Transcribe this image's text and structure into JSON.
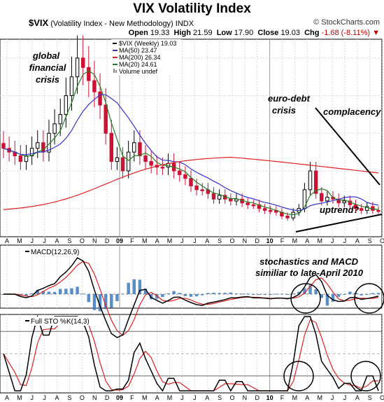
{
  "header": {
    "title": "VIX Volatility Index",
    "symbol": "$VIX",
    "description": "(Volatility Index - New Methodology)",
    "exchange": "INDX",
    "brand": "© StockCharts.com",
    "open_label": "Open",
    "open": "19.33",
    "high_label": "High",
    "high": "21.59",
    "low_label": "Low",
    "low": "17.90",
    "close_label": "Close",
    "close": "19.03",
    "chg_label": "Chg",
    "chg": "-1.68 (-8.11%)"
  },
  "legend": [
    {
      "label": "$VIX (Weekly) 19.03",
      "color": "#000000",
      "kind": "price"
    },
    {
      "label": "MA(50) 23.47",
      "color": "#3333cc",
      "kind": "line"
    },
    {
      "label": "MA(200) 26.34",
      "color": "#e02020",
      "kind": "line"
    },
    {
      "label": "MA(20) 24.61",
      "color": "#208020",
      "kind": "line"
    },
    {
      "label": "Volume undef",
      "color": "#888888",
      "kind": "bars"
    }
  ],
  "annotations": {
    "gfc": [
      "global",
      "financial",
      "crisis"
    ],
    "eurodebt": [
      "euro-debt",
      "crisis"
    ],
    "complacency": "complacency",
    "uptrend": "uptrend?",
    "stoch_note": [
      "stochastics and MACD",
      "similiar to late-April 2010"
    ]
  },
  "colors": {
    "up": "#000000",
    "down": "#cc1133",
    "ma50": "#3333cc",
    "ma200": "#e02020",
    "ma20": "#208020",
    "macd": "#000000",
    "signal": "#e02020",
    "hist": "#3a7ac0",
    "k": "#000000",
    "d": "#e02020",
    "grid": "#d8d8d8"
  },
  "panels": {
    "macd_label": "MACD(12,26,9)",
    "sto_label": "Full STO %K(14,3)"
  },
  "chart_data": {
    "type": "candlestick",
    "title": "VIX Volatility Index",
    "period": "weekly",
    "month_labels": [
      "A",
      "M",
      "J",
      "J",
      "A",
      "S",
      "O",
      "N",
      "D",
      "09",
      "F",
      "M",
      "A",
      "M",
      "J",
      "J",
      "A",
      "S",
      "O",
      "N",
      "D",
      "10",
      "F",
      "M",
      "A",
      "M",
      "J",
      "J",
      "A",
      "S",
      "O"
    ],
    "y_right_ticks": [],
    "close_approx": [
      52,
      50,
      48,
      45,
      48,
      52,
      55,
      50,
      60,
      65,
      70,
      80,
      90,
      100,
      95,
      88,
      82,
      75,
      60,
      45,
      47,
      40,
      50,
      55,
      48,
      45,
      43,
      42,
      42,
      44,
      40,
      38,
      36,
      32,
      30,
      30,
      28,
      25,
      27,
      25,
      24,
      25,
      23,
      22,
      22,
      20,
      19,
      19,
      18,
      16,
      15,
      18,
      20,
      30,
      40,
      28,
      24,
      26,
      25,
      23,
      24,
      22,
      20,
      19,
      21,
      19,
      19
    ],
    "macd": {
      "name": "MACD(12,26,9)"
    },
    "stochastic": {
      "name": "Full STO %K(14,3)",
      "levels": [
        20,
        50,
        80
      ]
    },
    "last": {
      "open": 19.33,
      "high": 21.59,
      "low": 17.9,
      "close": 19.03,
      "ma50": 23.47,
      "ma200": 26.34,
      "ma20": 24.61
    }
  }
}
